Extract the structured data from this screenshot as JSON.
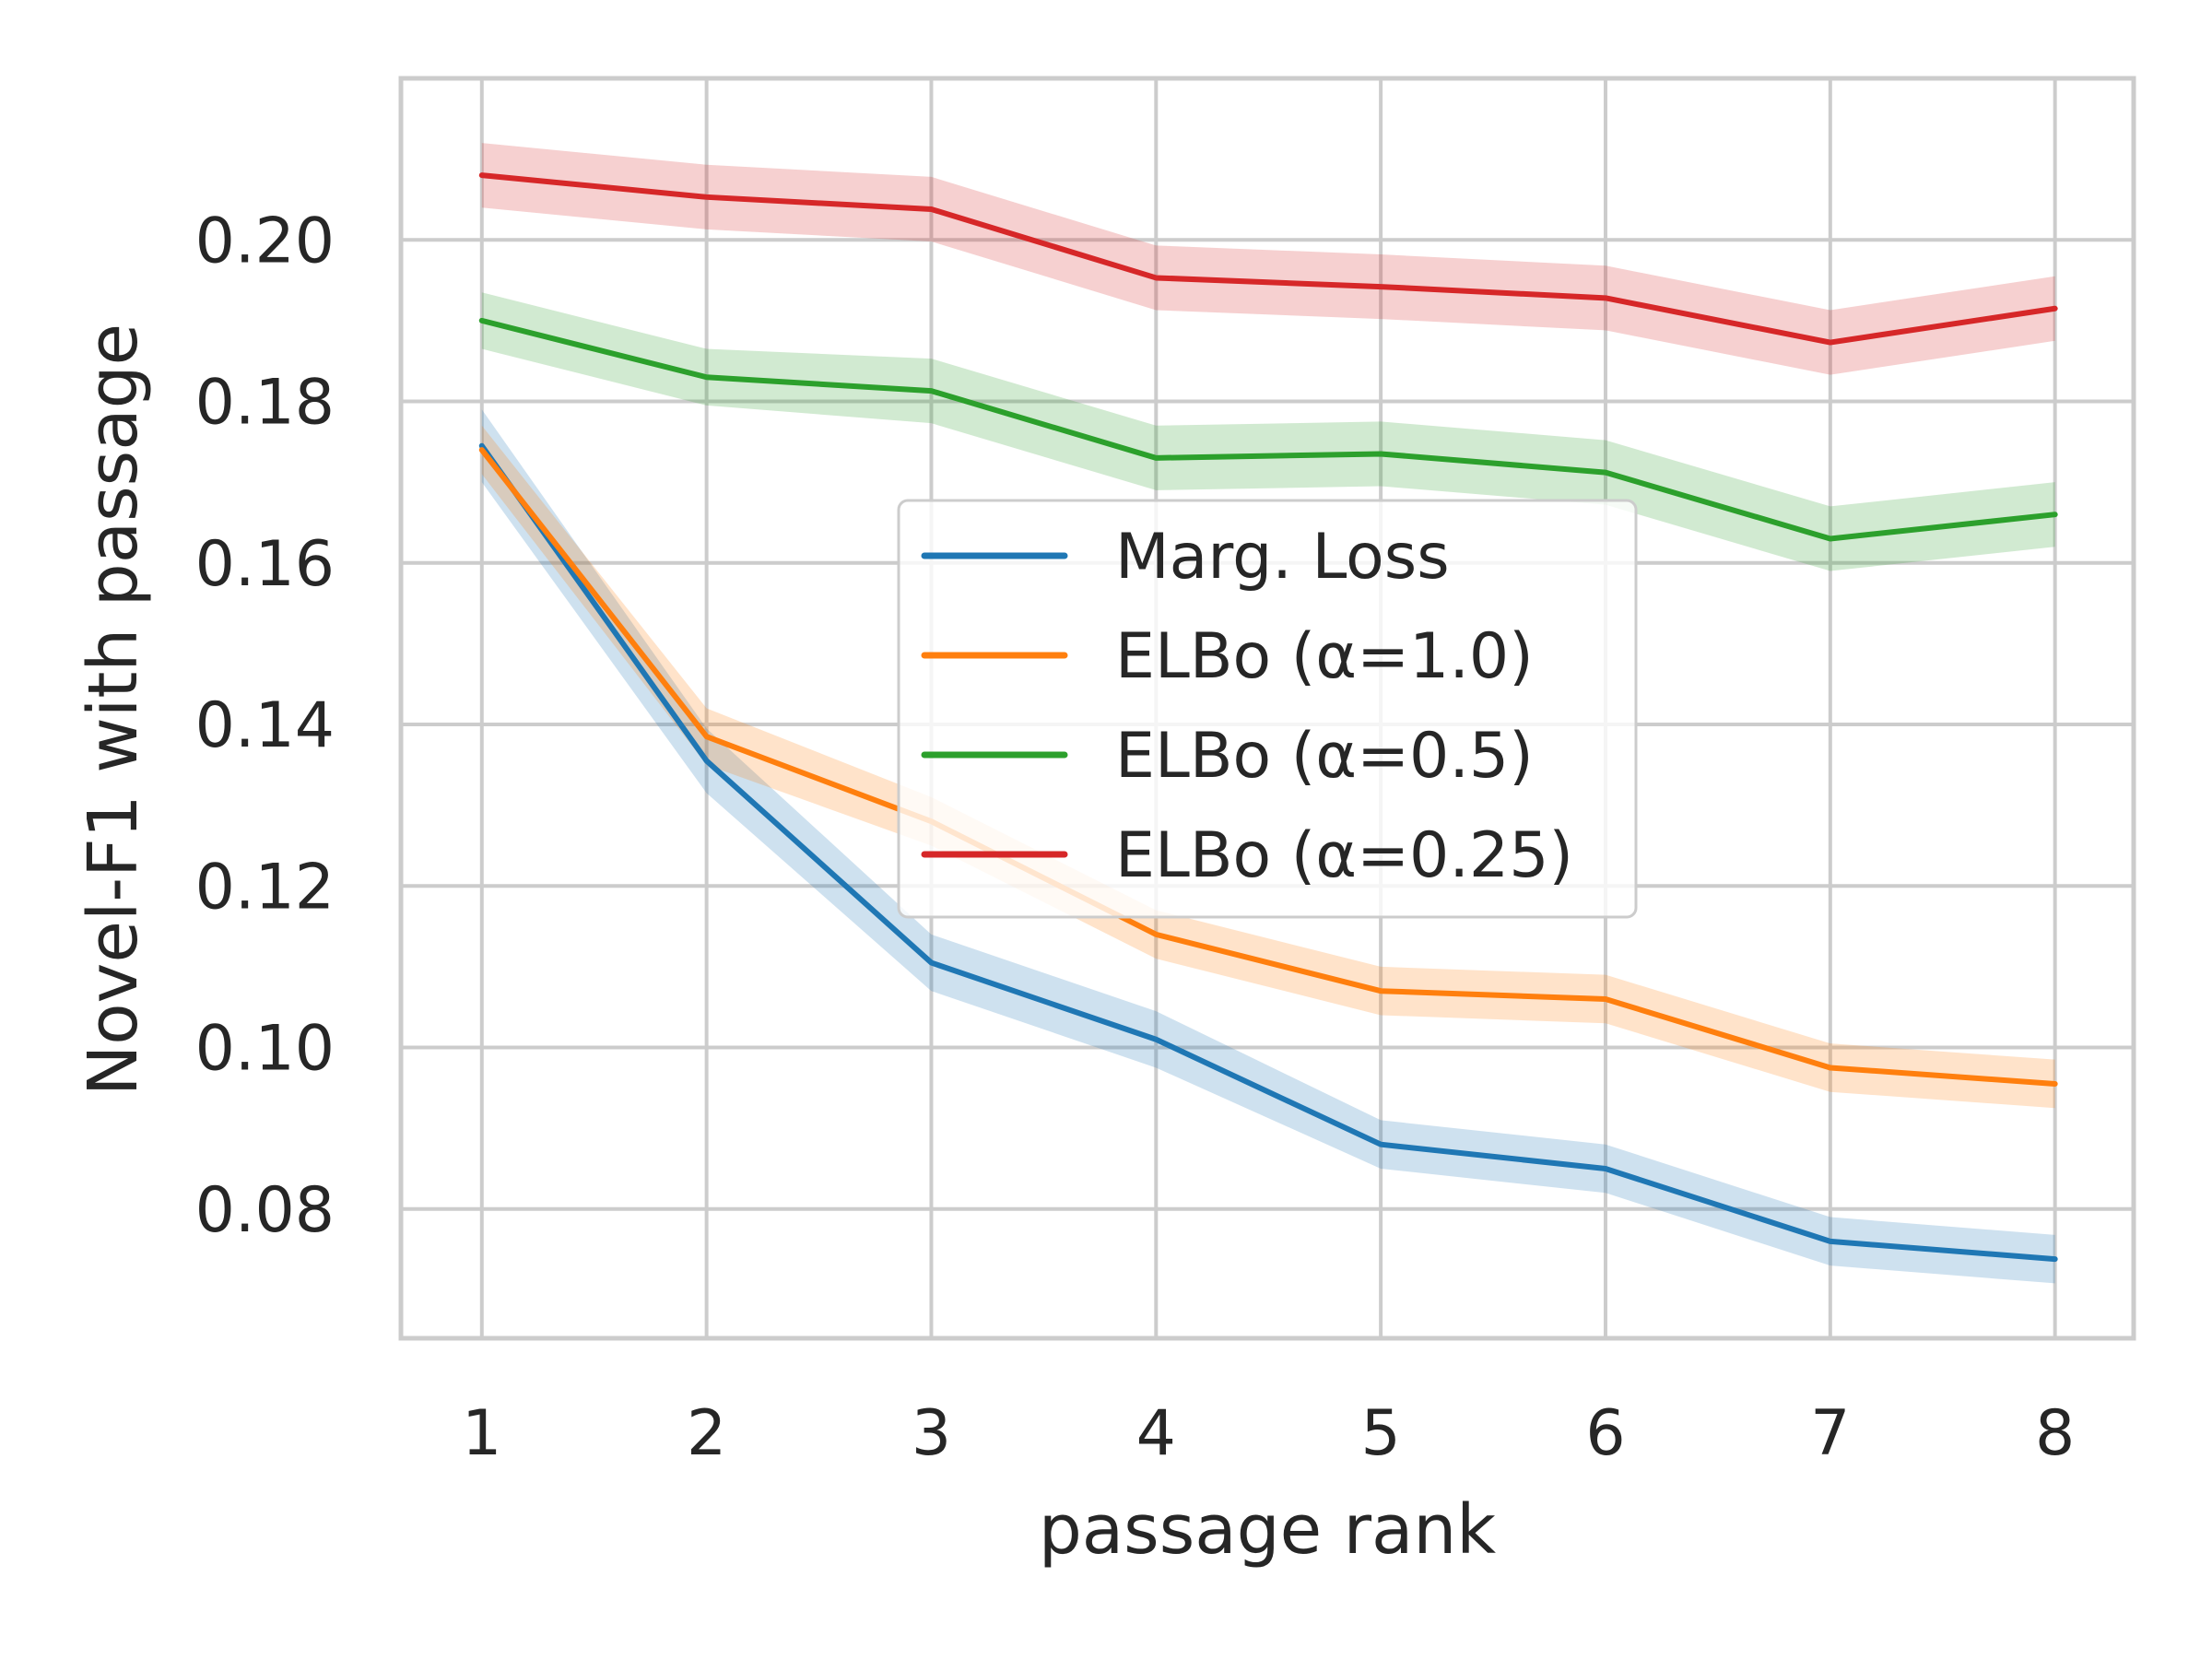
{
  "chart_data": {
    "type": "line",
    "title": "",
    "xlabel": "passage rank",
    "ylabel": "Novel-F1 with passage",
    "x": [
      1,
      2,
      3,
      4,
      5,
      6,
      7,
      8
    ],
    "xlim": [
      0.64,
      8.35
    ],
    "ylim": [
      0.064,
      0.22
    ],
    "yticks": [
      0.08,
      0.1,
      0.12,
      0.14,
      0.16,
      0.18,
      0.2
    ],
    "ytick_labels": [
      "0.08",
      "0.10",
      "0.12",
      "0.14",
      "0.16",
      "0.18",
      "0.20"
    ],
    "xtick_labels": [
      "1",
      "2",
      "3",
      "4",
      "5",
      "6",
      "7",
      "8"
    ],
    "grid": true,
    "legend_position": "center",
    "series": [
      {
        "name": "Marg. Loss",
        "color": "#1f77b4",
        "values": [
          0.1745,
          0.1355,
          0.1105,
          0.101,
          0.088,
          0.085,
          0.076,
          0.0738
        ],
        "band": [
          0.0045,
          0.004,
          0.0035,
          0.0035,
          0.003,
          0.003,
          0.003,
          0.003
        ]
      },
      {
        "name": "ELBo (α=1.0)",
        "color": "#ff7f0e",
        "values": [
          0.174,
          0.1385,
          0.128,
          0.114,
          0.107,
          0.106,
          0.0975,
          0.0955
        ],
        "band": [
          0.003,
          0.0035,
          0.003,
          0.003,
          0.003,
          0.003,
          0.003,
          0.003
        ]
      },
      {
        "name": "ELBo (α=0.5)",
        "color": "#2ca02c",
        "values": [
          0.19,
          0.183,
          0.1813,
          0.173,
          0.1735,
          0.1712,
          0.163,
          0.166
        ],
        "band": [
          0.0035,
          0.0035,
          0.004,
          0.004,
          0.004,
          0.004,
          0.004,
          0.004
        ]
      },
      {
        "name": "ELBo (α=0.25)",
        "color": "#d62728",
        "values": [
          0.208,
          0.2053,
          0.2038,
          0.1953,
          0.1942,
          0.1928,
          0.1873,
          0.1915
        ],
        "band": [
          0.004,
          0.004,
          0.004,
          0.004,
          0.004,
          0.004,
          0.004,
          0.004
        ]
      }
    ]
  }
}
